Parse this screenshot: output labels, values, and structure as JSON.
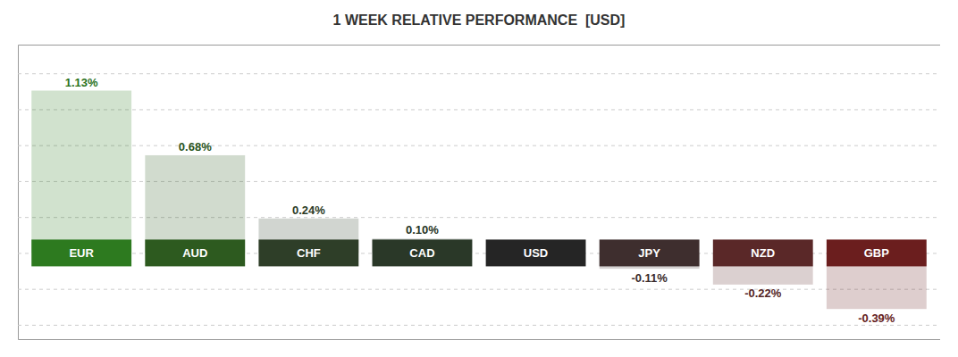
{
  "chart_data": {
    "type": "bar",
    "title": "1 WEEK RELATIVE PERFORMANCE  [USD]",
    "categories": [
      "EUR",
      "AUD",
      "CHF",
      "CAD",
      "USD",
      "JPY",
      "NZD",
      "GBP"
    ],
    "values": [
      1.13,
      0.68,
      0.24,
      0.1,
      0.0,
      -0.11,
      -0.22,
      -0.39
    ],
    "value_labels": [
      "1.13%",
      "0.68%",
      "0.24%",
      "0.10%",
      null,
      "-0.11%",
      "-0.22%",
      "-0.39%"
    ],
    "data_labels": true,
    "colors": [
      "#2d7a1f",
      "#2d5a1f",
      "#2e3e28",
      "#2a3828",
      "#252525",
      "#3e2e2e",
      "#5a2828",
      "#6b1e1e"
    ],
    "ylim": [
      -0.6,
      1.45
    ],
    "yticks": [
      -0.5,
      -0.25,
      0,
      0.25,
      0.5,
      0.75,
      1,
      1.25
    ],
    "grid": true,
    "tick_labels": false
  }
}
